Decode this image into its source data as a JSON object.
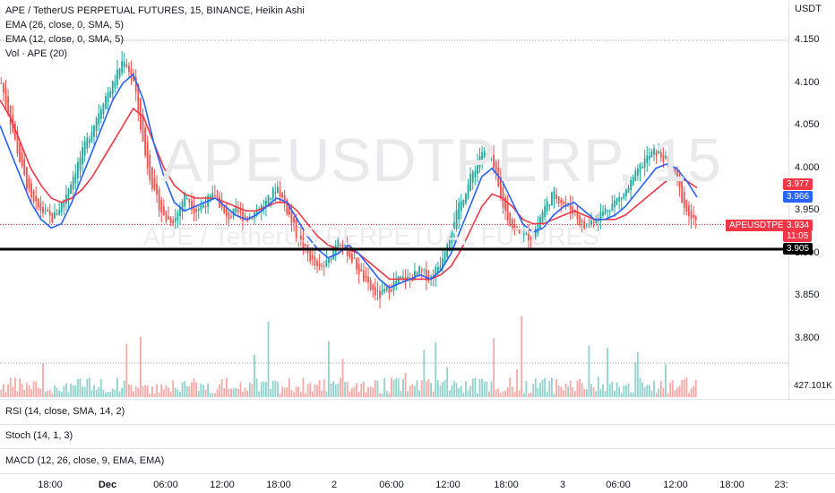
{
  "legend": {
    "title": "APE / TetherUS PERPETUAL FUTURES, 15, BINANCE, Heikin Ashi",
    "ema26": "EMA (26, close, 0, SMA, 5)",
    "ema12": "EMA (12, close, 0, SMA, 5)",
    "volume": "Vol · APE (20)"
  },
  "watermark": {
    "symbol": "APEUSDTPERP, 15",
    "name": "APE / TetherUS PERPETUAL FUTURES"
  },
  "price_scale": {
    "unit": "USDT",
    "ticks": [
      "4.150",
      "4.100",
      "4.050",
      "4.000",
      "3.950",
      "3.900",
      "3.850",
      "3.800"
    ]
  },
  "tags": {
    "ema26_value": "3.977",
    "ema12_value": "3.966",
    "symbol_label": "APEUSDTPERP",
    "last_price": "3.934",
    "countdown": "11:05",
    "hline_price": "3.905",
    "volume_value": "427.101K"
  },
  "colors": {
    "up": "#26a69a",
    "down": "#ef5350",
    "ema26": "#f23645",
    "ema12": "#2962ff",
    "hline": "#000000"
  },
  "panes": {
    "rsi": "RSI (14, close, SMA, 14, 2)",
    "stoch": "Stoch (14, 1, 3)",
    "macd": "MACD (12, 26, close, 9, EMA, EMA)"
  },
  "time_axis": {
    "labels": [
      {
        "text": "18:00",
        "bold": false
      },
      {
        "text": "Dec",
        "bold": true
      },
      {
        "text": "06:00",
        "bold": false
      },
      {
        "text": "12:00",
        "bold": false
      },
      {
        "text": "18:00",
        "bold": false
      },
      {
        "text": "2",
        "bold": false
      },
      {
        "text": "06:00",
        "bold": false
      },
      {
        "text": "12:00",
        "bold": false
      },
      {
        "text": "18:00",
        "bold": false
      },
      {
        "text": "3",
        "bold": false
      },
      {
        "text": "06:00",
        "bold": false
      },
      {
        "text": "12:00",
        "bold": false
      },
      {
        "text": "18:00",
        "bold": false
      },
      {
        "text": "23:",
        "bold": false
      }
    ]
  },
  "chart_data": {
    "type": "candlestick",
    "interval": "15",
    "horizontal_line": 3.905,
    "y_range": [
      3.77,
      4.17
    ],
    "ema12": [
      4.05,
      4.02,
      3.99,
      3.96,
      3.94,
      3.93,
      3.935,
      3.96,
      3.99,
      4.02,
      4.05,
      4.08,
      4.1,
      4.11,
      4.08,
      4.03,
      3.99,
      3.96,
      3.95,
      3.955,
      3.96,
      3.965,
      3.955,
      3.945,
      3.94,
      3.945,
      3.955,
      3.965,
      3.96,
      3.94,
      3.92,
      3.905,
      3.895,
      3.9,
      3.91,
      3.9,
      3.885,
      3.87,
      3.86,
      3.865,
      3.87,
      3.875,
      3.87,
      3.88,
      3.9,
      3.93,
      3.96,
      3.99,
      4.0,
      3.985,
      3.96,
      3.935,
      3.925,
      3.93,
      3.945,
      3.955,
      3.96,
      3.95,
      3.94,
      3.94,
      3.945,
      3.955,
      3.97,
      3.985,
      4.0,
      4.005,
      4.0,
      3.985,
      3.966
    ],
    "ema26": [
      4.08,
      4.06,
      4.03,
      4.0,
      3.98,
      3.965,
      3.96,
      3.965,
      3.975,
      3.99,
      4.01,
      4.03,
      4.05,
      4.07,
      4.06,
      4.03,
      4.0,
      3.98,
      3.97,
      3.965,
      3.965,
      3.965,
      3.96,
      3.955,
      3.95,
      3.95,
      3.955,
      3.96,
      3.96,
      3.95,
      3.935,
      3.92,
      3.91,
      3.905,
      3.905,
      3.9,
      3.89,
      3.88,
      3.87,
      3.87,
      3.87,
      3.87,
      3.87,
      3.875,
      3.885,
      3.905,
      3.93,
      3.955,
      3.97,
      3.965,
      3.955,
      3.94,
      3.935,
      3.935,
      3.94,
      3.945,
      3.95,
      3.945,
      3.94,
      3.94,
      3.94,
      3.945,
      3.955,
      3.965,
      3.975,
      3.985,
      3.99,
      3.985,
      3.977
    ],
    "close_path": [
      4.1,
      4.05,
      4.0,
      3.96,
      3.95,
      3.94,
      3.96,
      3.99,
      4.02,
      4.05,
      4.08,
      4.1,
      4.13,
      4.1,
      4.02,
      3.97,
      3.94,
      3.94,
      3.97,
      3.95,
      3.96,
      3.97,
      3.94,
      3.95,
      3.94,
      3.95,
      3.96,
      3.98,
      3.95,
      3.92,
      3.9,
      3.88,
      3.89,
      3.92,
      3.9,
      3.88,
      3.86,
      3.85,
      3.86,
      3.87,
      3.87,
      3.88,
      3.87,
      3.89,
      3.93,
      3.96,
      3.99,
      4.02,
      4.01,
      3.96,
      3.93,
      3.92,
      3.92,
      3.95,
      3.97,
      3.96,
      3.95,
      3.93,
      3.94,
      3.95,
      3.96,
      3.97,
      3.99,
      4.01,
      4.02,
      4.01,
      3.99,
      3.95,
      3.934
    ]
  }
}
